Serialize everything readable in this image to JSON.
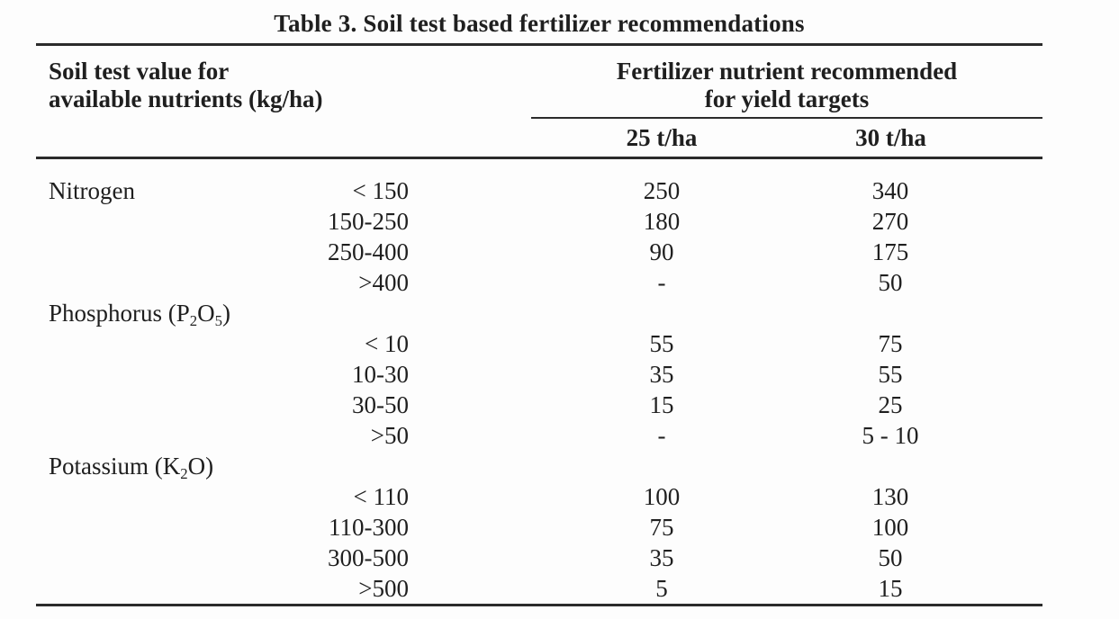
{
  "title": "Table 3. Soil test based fertilizer recommendations",
  "header": {
    "soil_line1": "Soil test value for",
    "soil_line2": "available nutrients (kg/ha)",
    "fert_line1": "Fertilizer nutrient recommended",
    "fert_line2": "for yield targets",
    "yield_25": "25 t/ha",
    "yield_30": "30 t/ha"
  },
  "sections": [
    {
      "name_main": "Nitrogen",
      "rows": [
        {
          "range": "< 150",
          "t25": "250",
          "t30": "340"
        },
        {
          "range": "150-250",
          "t25": "180",
          "t30": "270"
        },
        {
          "range": "250-400",
          "t25": "90",
          "t30": "175"
        },
        {
          "range": ">400",
          "t25": "-",
          "t30": "50"
        }
      ]
    },
    {
      "name_main": "Phosphorus (P",
      "name_sub1": "2",
      "name_mid": "O",
      "name_sub2": "5",
      "name_close": ")",
      "rows": [
        {
          "range": "< 10",
          "t25": "55",
          "t30": "75"
        },
        {
          "range": "10-30",
          "t25": "35",
          "t30": "55"
        },
        {
          "range": "30-50",
          "t25": "15",
          "t30": "25"
        },
        {
          "range": ">50",
          "t25": "-",
          "t30": "5 - 10"
        }
      ]
    },
    {
      "name_main": "Potassium (K",
      "name_sub1": "2",
      "name_mid": "O",
      "name_close": ")",
      "rows": [
        {
          "range": "< 110",
          "t25": "100",
          "t30": "130"
        },
        {
          "range": "110-300",
          "t25": "75",
          "t30": "100"
        },
        {
          "range": "300-500",
          "t25": "35",
          "t30": "50"
        },
        {
          "range": ">500",
          "t25": "5",
          "t30": "15"
        }
      ]
    }
  ],
  "colors": {
    "text": "#1f1f1f",
    "rule": "#2b2b2b",
    "background": "#fdfdfd"
  }
}
